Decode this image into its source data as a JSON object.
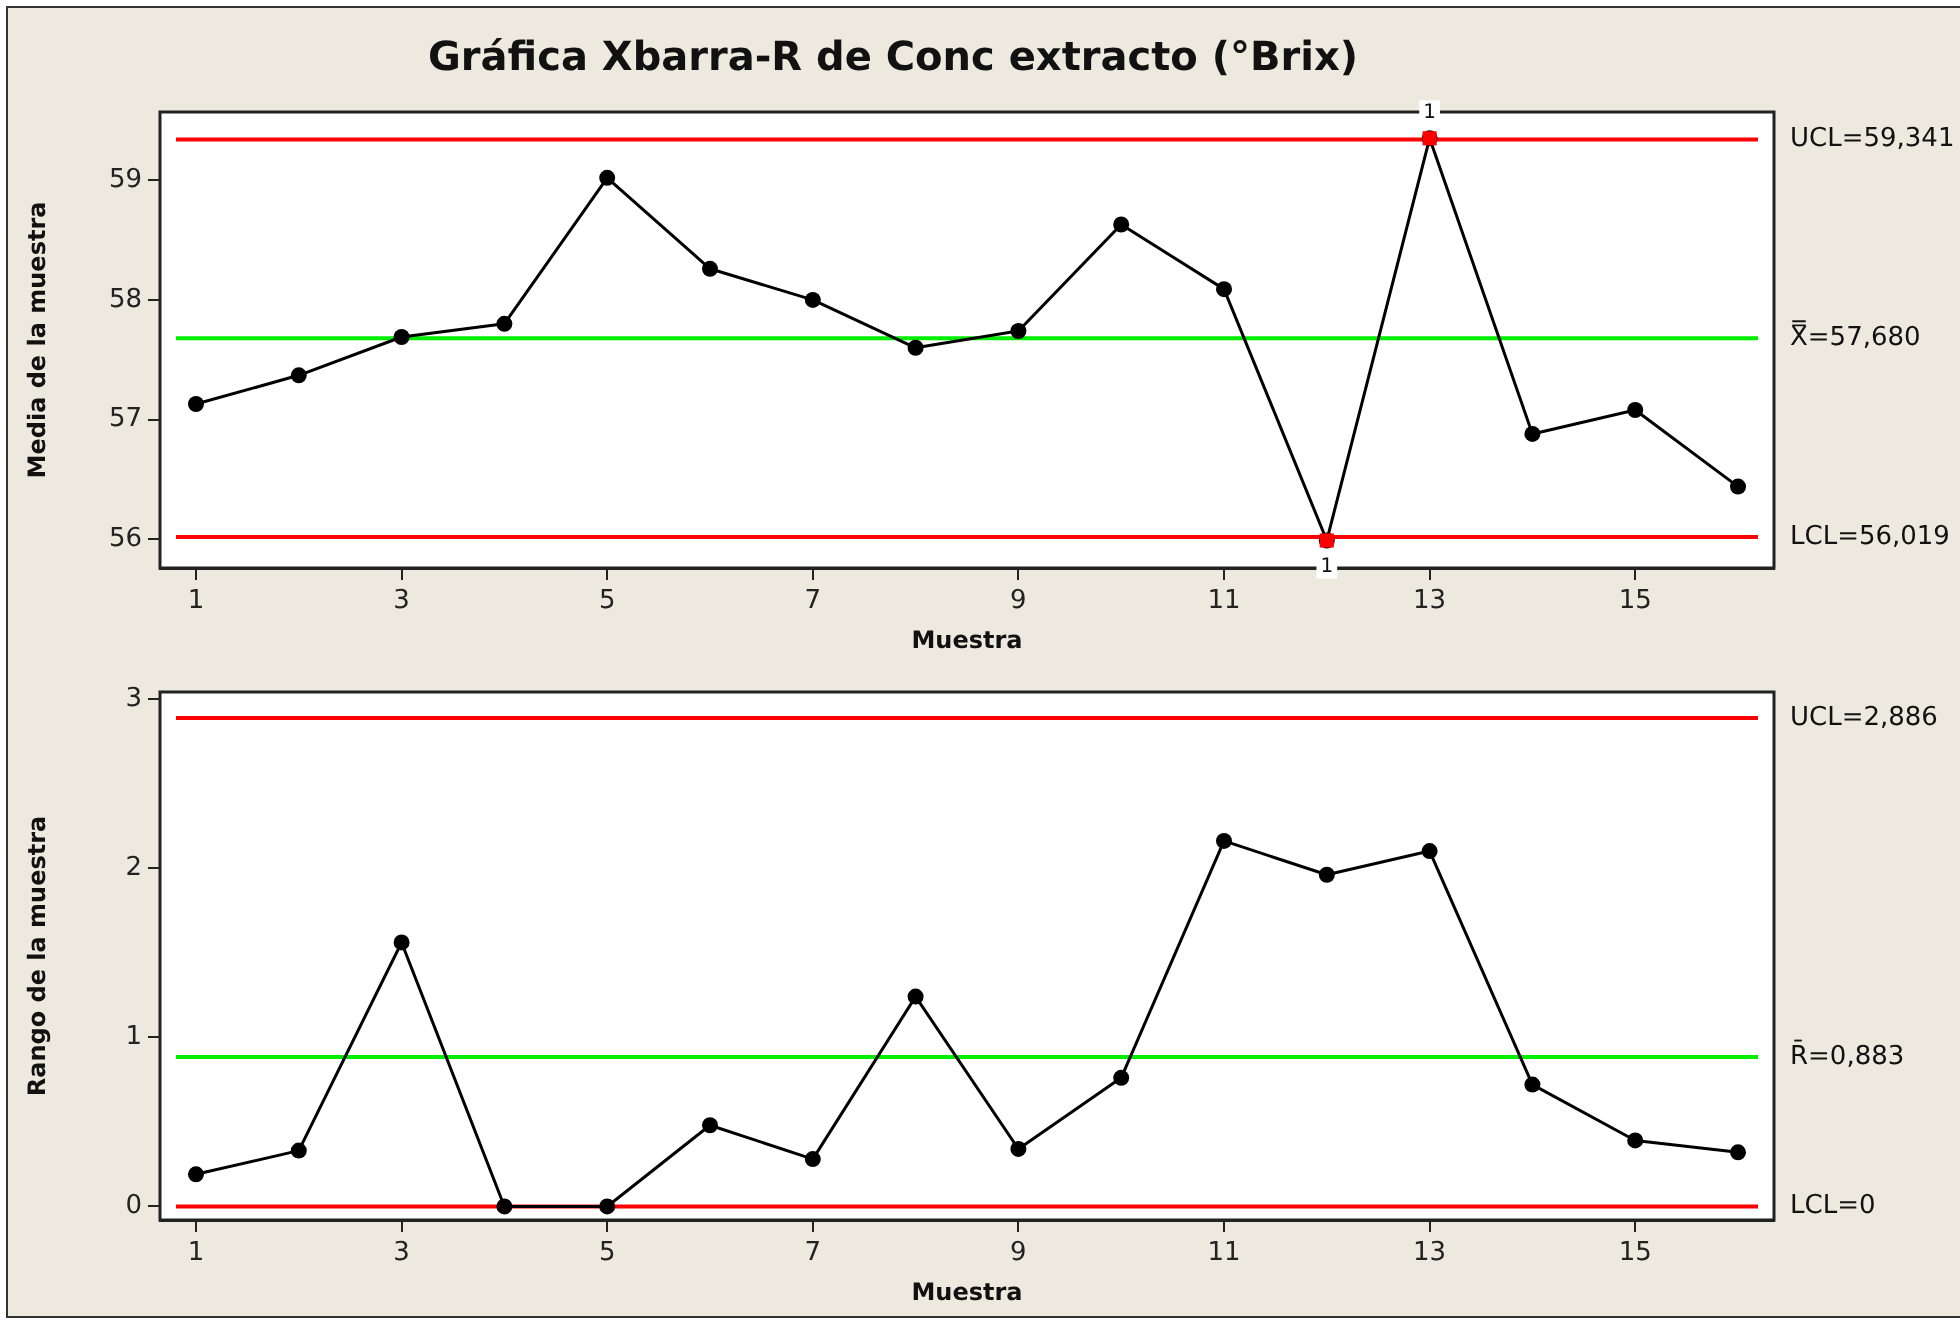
{
  "chart_data": [
    {
      "type": "line",
      "title": "Gráfica Xbarra-R de Conc extracto (°Brix)",
      "xlabel": "Muestra",
      "ylabel": "Media de la muestra",
      "x": [
        1,
        2,
        3,
        4,
        5,
        6,
        7,
        8,
        9,
        10,
        11,
        12,
        13,
        14,
        15,
        16
      ],
      "series": [
        {
          "color": "#000000",
          "marker": "circle",
          "values": [
            57.13,
            57.37,
            57.69,
            57.8,
            59.02,
            58.26,
            58.0,
            57.6,
            57.74,
            58.63,
            58.09,
            55.99,
            59.35,
            56.88,
            57.08,
            56.44
          ]
        },
        {
          "type": "scatter",
          "color": "#ff0000",
          "marker": "square",
          "x": [
            12,
            13
          ],
          "values": [
            55.99,
            59.35
          ]
        }
      ],
      "xlim": [
        0.65,
        16.35
      ],
      "xticks": [
        1,
        3,
        5,
        7,
        9,
        11,
        13,
        15
      ],
      "ylim": [
        55.76,
        59.57
      ],
      "yticks": [
        56,
        57,
        58,
        59
      ],
      "ref_lines": [
        {
          "axis": "y",
          "value": 59.341,
          "label": "UCL=59,341",
          "color": "#ff0000"
        },
        {
          "axis": "y",
          "value": 57.68,
          "label": "X̿=57,680",
          "color": "#00ee00"
        },
        {
          "axis": "y",
          "value": 56.019,
          "label": "LCL=56,019",
          "color": "#ff0000"
        }
      ],
      "annotations": [
        {
          "text": "1",
          "x": 12,
          "y": 55.99
        },
        {
          "text": "1",
          "x": 13,
          "y": 59.35
        }
      ],
      "legend": false
    },
    {
      "type": "line",
      "xlabel": "Muestra",
      "ylabel": "Rango de la muestra",
      "x": [
        1,
        2,
        3,
        4,
        5,
        6,
        7,
        8,
        9,
        10,
        11,
        12,
        13,
        14,
        15,
        16
      ],
      "series": [
        {
          "color": "#000000",
          "marker": "circle",
          "values": [
            0.19,
            0.33,
            1.56,
            0.0,
            0.0,
            0.48,
            0.28,
            1.24,
            0.34,
            0.76,
            2.16,
            1.96,
            2.1,
            0.72,
            0.39,
            0.32
          ]
        }
      ],
      "xlim": [
        0.65,
        16.35
      ],
      "xticks": [
        1,
        3,
        5,
        7,
        9,
        11,
        13,
        15
      ],
      "ylim": [
        -0.08,
        3.04
      ],
      "yticks": [
        0,
        1,
        2,
        3
      ],
      "ref_lines": [
        {
          "axis": "y",
          "value": 2.886,
          "label": "UCL=2,886",
          "color": "#ff0000"
        },
        {
          "axis": "y",
          "value": 0.883,
          "label": "R̄=0,883",
          "color": "#00ee00"
        },
        {
          "axis": "y",
          "value": 0,
          "label": "LCL=0",
          "color": "#ff0000"
        }
      ],
      "legend": false
    }
  ]
}
